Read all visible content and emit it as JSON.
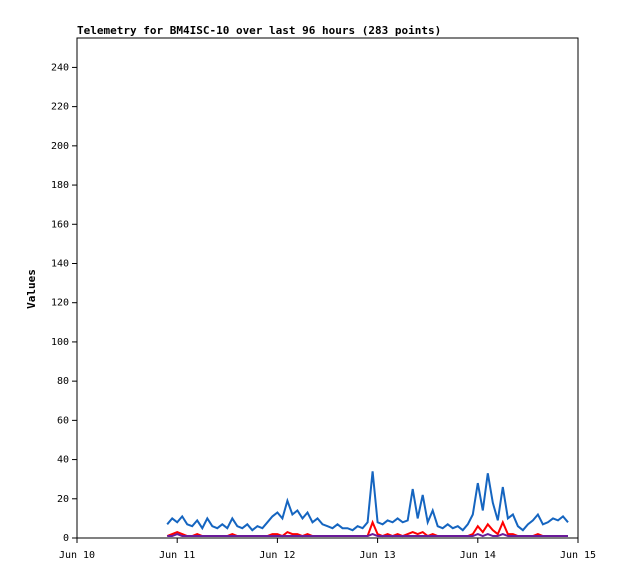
{
  "chart_data": {
    "type": "line",
    "title": "Telemetry for BM4ISC-10 over last 96 hours (283 points)",
    "y_label": "Values",
    "x": [
      10.9,
      10.95,
      11.0,
      11.05,
      11.1,
      11.15,
      11.2,
      11.25,
      11.3,
      11.35,
      11.4,
      11.45,
      11.5,
      11.55,
      11.6,
      11.65,
      11.7,
      11.75,
      11.8,
      11.85,
      11.9,
      11.95,
      12.0,
      12.05,
      12.1,
      12.15,
      12.2,
      12.25,
      12.3,
      12.35,
      12.4,
      12.45,
      12.5,
      12.55,
      12.6,
      12.65,
      12.7,
      12.75,
      12.8,
      12.85,
      12.9,
      12.95,
      13.0,
      13.05,
      13.1,
      13.15,
      13.2,
      13.25,
      13.3,
      13.35,
      13.4,
      13.45,
      13.5,
      13.55,
      13.6,
      13.65,
      13.7,
      13.75,
      13.8,
      13.85,
      13.9,
      13.95,
      14.0,
      14.05,
      14.1,
      14.15,
      14.2,
      14.25,
      14.3,
      14.35,
      14.4,
      14.45,
      14.5,
      14.55,
      14.6,
      14.65,
      14.7,
      14.75,
      14.8,
      14.85,
      14.9
    ],
    "series": [
      {
        "color": "#1565c0",
        "values": [
          7,
          10,
          8,
          11,
          7,
          6,
          9,
          5,
          10,
          6,
          5,
          7,
          5,
          10,
          6,
          5,
          7,
          4,
          6,
          5,
          8,
          11,
          13,
          10,
          19,
          12,
          14,
          10,
          13,
          8,
          10,
          7,
          6,
          5,
          7,
          5,
          5,
          4,
          6,
          5,
          8,
          34,
          8,
          7,
          9,
          8,
          10,
          8,
          9,
          25,
          10,
          22,
          8,
          14,
          6,
          5,
          7,
          5,
          6,
          4,
          7,
          12,
          28,
          14,
          33,
          18,
          9,
          26,
          10,
          12,
          6,
          4,
          7,
          9,
          12,
          7,
          8,
          10,
          9,
          11,
          8
        ]
      },
      {
        "color": "#ff0000",
        "values": [
          1,
          2,
          3,
          2,
          1,
          1,
          2,
          1,
          1,
          1,
          1,
          1,
          1,
          2,
          1,
          1,
          1,
          1,
          1,
          1,
          1,
          2,
          2,
          1,
          3,
          2,
          2,
          1,
          2,
          1,
          1,
          1,
          1,
          1,
          1,
          1,
          1,
          1,
          1,
          1,
          1,
          8,
          2,
          1,
          2,
          1,
          2,
          1,
          2,
          3,
          2,
          3,
          1,
          2,
          1,
          1,
          1,
          1,
          1,
          1,
          1,
          2,
          6,
          3,
          7,
          4,
          2,
          8,
          2,
          2,
          1,
          1,
          1,
          1,
          2,
          1,
          1,
          1,
          1,
          1,
          1
        ]
      },
      {
        "color": "#6a1b9a",
        "values": [
          1,
          1,
          2,
          1,
          1,
          1,
          1,
          1,
          1,
          1,
          1,
          1,
          1,
          1,
          1,
          1,
          1,
          1,
          1,
          1,
          1,
          1,
          1,
          1,
          1,
          1,
          1,
          1,
          1,
          1,
          1,
          1,
          1,
          1,
          1,
          1,
          1,
          1,
          1,
          1,
          1,
          2,
          1,
          1,
          1,
          1,
          1,
          1,
          1,
          1,
          1,
          1,
          1,
          1,
          1,
          1,
          1,
          1,
          1,
          1,
          1,
          1,
          2,
          1,
          2,
          1,
          1,
          2,
          1,
          1,
          1,
          1,
          1,
          1,
          1,
          1,
          1,
          1,
          1,
          1,
          1
        ]
      }
    ],
    "xlim": [
      10,
      15
    ],
    "xticks": [
      {
        "value": 10,
        "label": "Jun 10"
      },
      {
        "value": 11,
        "label": "Jun 11"
      },
      {
        "value": 12,
        "label": "Jun 12"
      },
      {
        "value": 13,
        "label": "Jun 13"
      },
      {
        "value": 14,
        "label": "Jun 14"
      },
      {
        "value": 15,
        "label": "Jun 15"
      }
    ],
    "ylim": [
      0,
      255
    ],
    "yticks": [
      0,
      20,
      40,
      60,
      80,
      100,
      120,
      140,
      160,
      180,
      200,
      220,
      240
    ]
  }
}
